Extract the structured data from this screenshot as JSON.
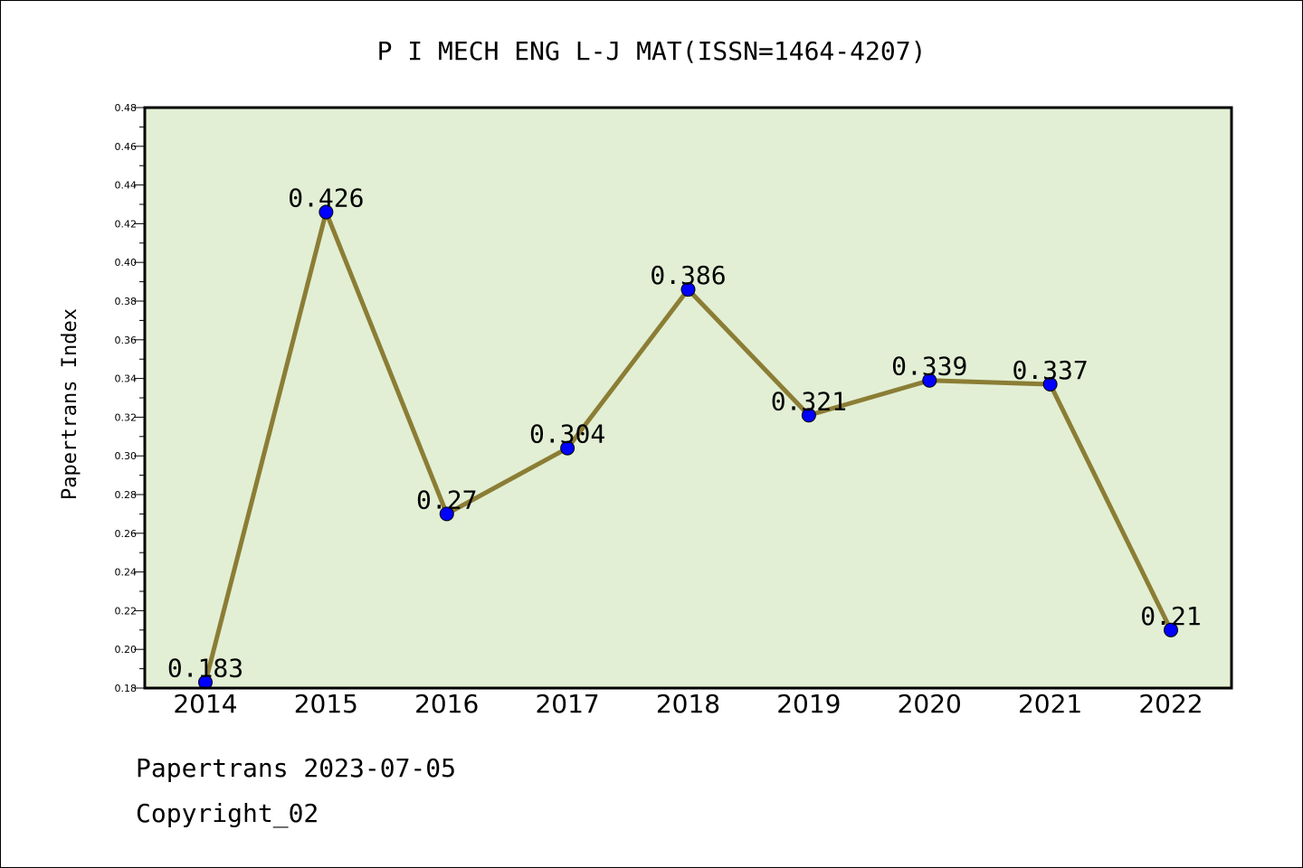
{
  "footer": {
    "line1": "Papertrans 2023-07-05",
    "line2": "Copyright_02"
  },
  "chart_data": {
    "type": "line",
    "title": "P I MECH ENG L-J MAT(ISSN=1464-4207)",
    "xlabel": "",
    "ylabel": "Papertrans Index",
    "categories": [
      "2014",
      "2015",
      "2016",
      "2017",
      "2018",
      "2019",
      "2020",
      "2021",
      "2022"
    ],
    "values": [
      0.183,
      0.426,
      0.27,
      0.304,
      0.386,
      0.321,
      0.339,
      0.337,
      0.21
    ],
    "data_labels": [
      "0.183",
      "0.426",
      "0.27",
      "0.304",
      "0.386",
      "0.321",
      "0.339",
      "0.337",
      "0.21"
    ],
    "ylim": [
      0.18,
      0.48
    ],
    "yticks": [
      "0.18",
      "0.20",
      "0.22",
      "0.24",
      "0.26",
      "0.28",
      "0.30",
      "0.32",
      "0.34",
      "0.36",
      "0.38",
      "0.40",
      "0.42",
      "0.44",
      "0.46",
      "0.48"
    ],
    "grid": false,
    "legend": "none",
    "colors": {
      "plot_background": "#e2efd4",
      "line": "#8b7d35",
      "marker": "#0000ff"
    }
  }
}
